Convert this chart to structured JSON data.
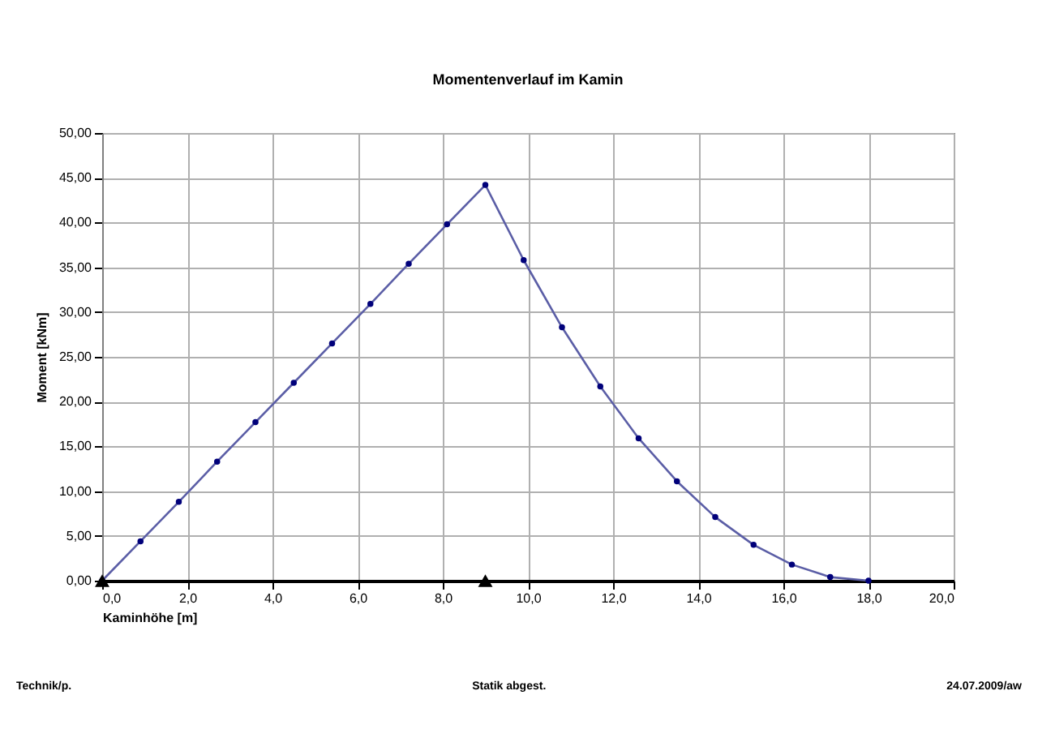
{
  "chart_data": {
    "type": "line",
    "title": "Momentenverlauf im Kamin",
    "xlabel": "Kaminhöhe [m]",
    "ylabel": "Moment [kNm]",
    "annotations": [
      "Technik/p.",
      "Statik abgest.",
      "24.07.2009/aw"
    ],
    "xlim": [
      0,
      20
    ],
    "ylim": [
      0,
      50
    ],
    "xticks": [
      {
        "value": 0,
        "label": "0,0"
      },
      {
        "value": 2,
        "label": "2,0"
      },
      {
        "value": 4,
        "label": "4,0"
      },
      {
        "value": 6,
        "label": "6,0"
      },
      {
        "value": 8,
        "label": "8,0"
      },
      {
        "value": 10,
        "label": "10,0"
      },
      {
        "value": 12,
        "label": "12,0"
      },
      {
        "value": 14,
        "label": "14,0"
      },
      {
        "value": 16,
        "label": "16,0"
      },
      {
        "value": 18,
        "label": "18,0"
      },
      {
        "value": 20,
        "label": "20,0"
      }
    ],
    "yticks": [
      {
        "value": 0,
        "label": "0,00"
      },
      {
        "value": 5,
        "label": "5,00"
      },
      {
        "value": 10,
        "label": "10,00"
      },
      {
        "value": 15,
        "label": "15,00"
      },
      {
        "value": 20,
        "label": "20,00"
      },
      {
        "value": 25,
        "label": "25,00"
      },
      {
        "value": 30,
        "label": "30,00"
      },
      {
        "value": 35,
        "label": "35,00"
      },
      {
        "value": 40,
        "label": "40,00"
      },
      {
        "value": 45,
        "label": "45,00"
      },
      {
        "value": 50,
        "label": "50,00"
      }
    ],
    "grid": true,
    "marker": "circle",
    "line_style": "solid",
    "series": [
      {
        "color": "#5b5ea6",
        "x": [
          0,
          0.9,
          1.8,
          2.7,
          3.6,
          4.5,
          5.4,
          6.3,
          7.2,
          8.1,
          9,
          9.9,
          10.8,
          11.7,
          12.6,
          13.5,
          14.4,
          15.3,
          16.2,
          17.1,
          18
        ],
        "values": [
          0,
          4.4,
          8.8,
          13.3,
          17.7,
          22.1,
          26.5,
          30.9,
          35.4,
          39.8,
          44.2,
          35.8,
          28.3,
          21.7,
          15.9,
          11.1,
          7.1,
          4.0,
          1.8,
          0.4,
          0
        ]
      },
      {
        "type": "scatter",
        "color": "#000000",
        "marker": "triangle",
        "x": [
          0,
          9
        ],
        "values": [
          0,
          0
        ]
      }
    ]
  }
}
